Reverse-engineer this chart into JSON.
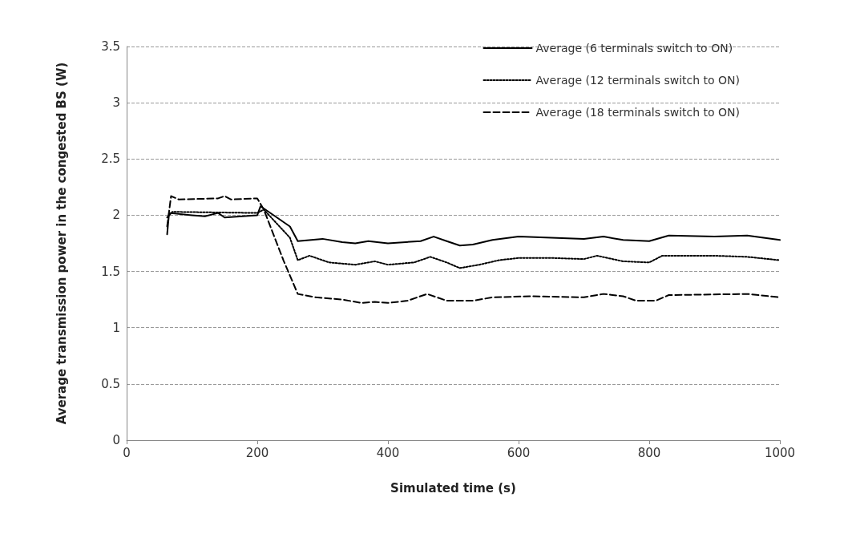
{
  "chart_data": {
    "type": "line",
    "xlabel": "Simulated time (s)",
    "ylabel": "Average transmission power in the congested BS (W)",
    "xlim": [
      0,
      1000
    ],
    "xticks": [
      0,
      200,
      400,
      600,
      800,
      1000
    ],
    "ylim": [
      0,
      3.5
    ],
    "yticks": [
      0,
      0.5,
      1,
      1.5,
      2,
      2.5,
      3,
      3.5
    ],
    "grid": "y",
    "legend": "top right",
    "marker": "none",
    "series": [
      {
        "name": "Average (6 terminals switch to ON)",
        "color": "#000000",
        "line_style": "solid",
        "x": [
          62,
          65,
          100,
          120,
          140,
          150,
          200,
          205,
          230,
          250,
          262,
          300,
          330,
          350,
          370,
          400,
          450,
          470,
          490,
          510,
          530,
          560,
          600,
          700,
          730,
          760,
          800,
          830,
          900,
          950,
          1000
        ],
        "values": [
          1.83,
          2.02,
          2.0,
          1.99,
          2.02,
          1.98,
          2.0,
          2.08,
          1.98,
          1.9,
          1.77,
          1.79,
          1.76,
          1.75,
          1.77,
          1.75,
          1.77,
          1.81,
          1.77,
          1.73,
          1.74,
          1.78,
          1.81,
          1.79,
          1.81,
          1.78,
          1.77,
          1.82,
          1.81,
          1.82,
          1.78
        ]
      },
      {
        "name": "Average (12 terminals switch to ON)",
        "color": "#000000",
        "line_style": "dotted",
        "x": [
          62,
          70,
          200,
          210,
          250,
          262,
          280,
          310,
          350,
          380,
          400,
          440,
          465,
          490,
          510,
          540,
          570,
          600,
          650,
          700,
          720,
          760,
          800,
          820,
          900,
          950,
          1000
        ],
        "values": [
          1.98,
          2.03,
          2.02,
          2.05,
          1.8,
          1.6,
          1.64,
          1.58,
          1.56,
          1.59,
          1.56,
          1.58,
          1.63,
          1.58,
          1.53,
          1.56,
          1.6,
          1.62,
          1.62,
          1.61,
          1.64,
          1.59,
          1.58,
          1.64,
          1.64,
          1.63,
          1.6
        ]
      },
      {
        "name": "Average (18 terminals switch to ON)",
        "color": "#000000",
        "line_style": "dashed",
        "x": [
          62,
          68,
          80,
          140,
          150,
          160,
          200,
          210,
          240,
          262,
          290,
          330,
          360,
          380,
          400,
          430,
          460,
          490,
          530,
          560,
          620,
          700,
          730,
          760,
          780,
          810,
          830,
          950,
          1000
        ],
        "values": [
          1.9,
          2.17,
          2.14,
          2.15,
          2.17,
          2.14,
          2.15,
          2.05,
          1.6,
          1.3,
          1.27,
          1.25,
          1.22,
          1.23,
          1.22,
          1.24,
          1.3,
          1.24,
          1.24,
          1.27,
          1.28,
          1.27,
          1.3,
          1.28,
          1.24,
          1.24,
          1.29,
          1.3,
          1.27
        ]
      }
    ]
  }
}
